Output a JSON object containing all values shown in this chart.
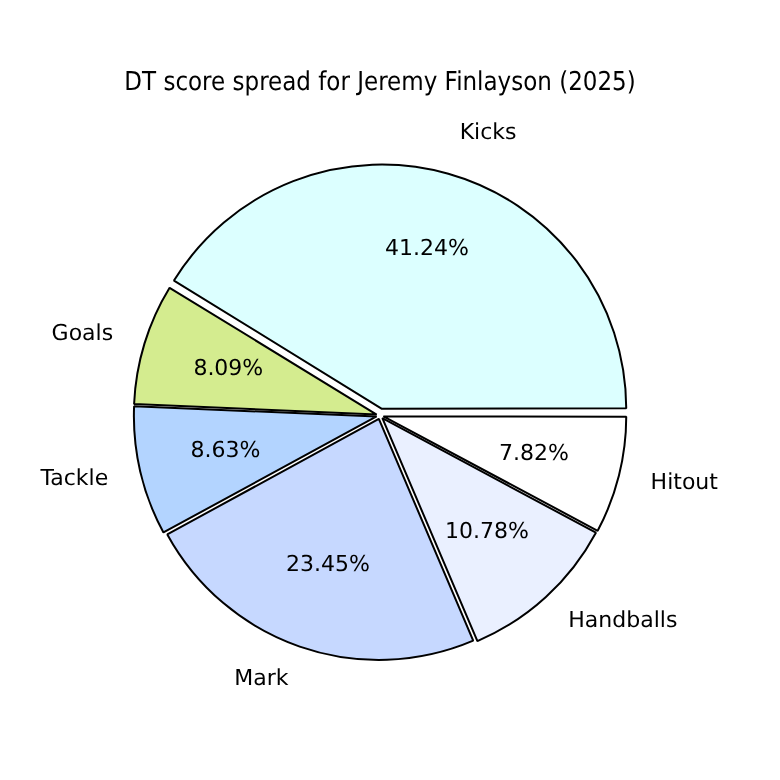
{
  "chart_data": {
    "type": "pie",
    "title": "DT score spread for Jeremy Finlayson (2025)",
    "categories": [
      "Hitout",
      "Handballs",
      "Mark",
      "Tackle",
      "Goals",
      "Kicks"
    ],
    "values": [
      7.82,
      10.78,
      23.45,
      8.63,
      8.09,
      41.24
    ],
    "value_labels": [
      "7.82%",
      "10.78%",
      "23.45%",
      "8.63%",
      "8.09%",
      "41.24%"
    ],
    "colors": [
      "#ffffff",
      "#eaf0ff",
      "#c6d8ff",
      "#b3d4ff",
      "#d4ec8f",
      "#dcffff"
    ],
    "legend": false
  }
}
